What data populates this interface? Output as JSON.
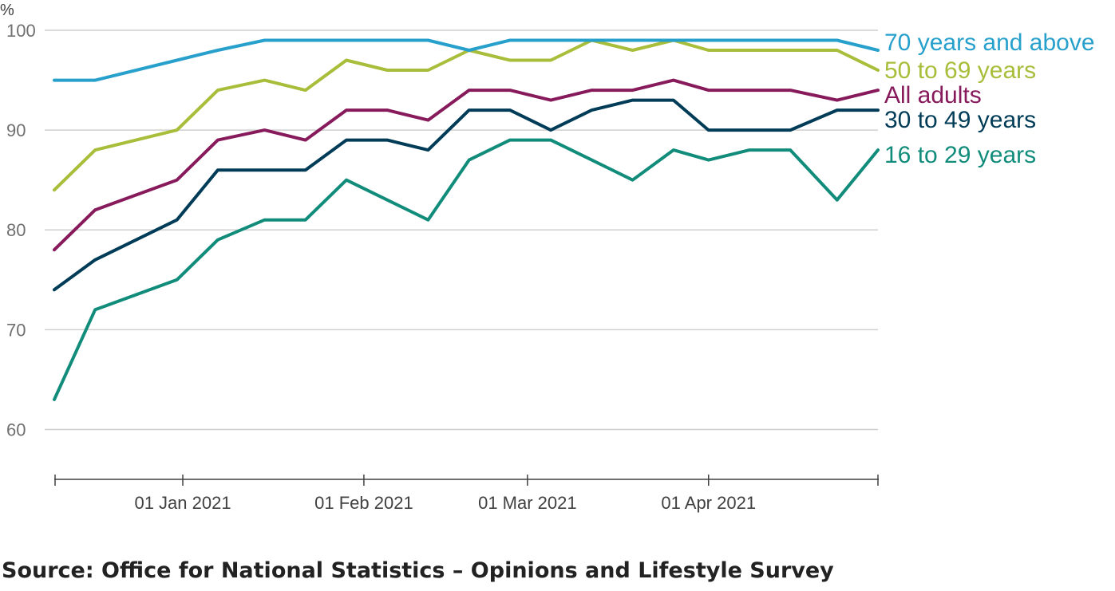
{
  "chart_data": {
    "type": "line",
    "y_unit_label": "%",
    "ylim": [
      55,
      100
    ],
    "yticks": [
      60,
      70,
      80,
      90,
      100
    ],
    "grid": true,
    "x": [
      "2020-12-10",
      "2020-12-17",
      "2020-12-31",
      "2021-01-07",
      "2021-01-15",
      "2021-01-22",
      "2021-01-29",
      "2021-02-05",
      "2021-02-12",
      "2021-02-19",
      "2021-02-26",
      "2021-03-05",
      "2021-03-12",
      "2021-03-19",
      "2021-03-26",
      "2021-04-01",
      "2021-04-08",
      "2021-04-15",
      "2021-04-23",
      "2021-04-30"
    ],
    "xticks": [
      {
        "date": "2021-01-01",
        "label": "01 Jan 2021"
      },
      {
        "date": "2021-02-01",
        "label": "01 Feb 2021"
      },
      {
        "date": "2021-03-01",
        "label": "01 Mar 2021"
      },
      {
        "date": "2021-04-01",
        "label": "01 Apr 2021"
      }
    ],
    "legend": "inline-right",
    "series": [
      {
        "name": "70 years and above",
        "color": "#27a0cc",
        "values": [
          95,
          95,
          97,
          98,
          99,
          99,
          99,
          99,
          99,
          98,
          99,
          99,
          99,
          99,
          99,
          99,
          99,
          99,
          99,
          98
        ]
      },
      {
        "name": "50 to 69 years",
        "color": "#a8bd3a",
        "values": [
          84,
          88,
          90,
          94,
          95,
          94,
          97,
          96,
          96,
          98,
          97,
          97,
          99,
          98,
          99,
          98,
          98,
          98,
          98,
          96
        ]
      },
      {
        "name": "All adults",
        "color": "#871a5b",
        "values": [
          78,
          82,
          85,
          89,
          90,
          89,
          92,
          92,
          91,
          94,
          94,
          93,
          94,
          94,
          95,
          94,
          94,
          94,
          93,
          94
        ]
      },
      {
        "name": "30 to 49 years",
        "color": "#003c57",
        "values": [
          74,
          77,
          81,
          86,
          86,
          86,
          89,
          89,
          88,
          92,
          92,
          90,
          92,
          93,
          93,
          90,
          90,
          90,
          92,
          92
        ]
      },
      {
        "name": "16 to 29 years",
        "color": "#118c7b",
        "values": [
          63,
          72,
          75,
          79,
          81,
          81,
          85,
          83,
          81,
          87,
          89,
          89,
          87,
          85,
          88,
          87,
          88,
          88,
          83,
          88
        ]
      }
    ]
  },
  "source": "Source: Office for National Statistics – Opinions and Lifestyle Survey"
}
